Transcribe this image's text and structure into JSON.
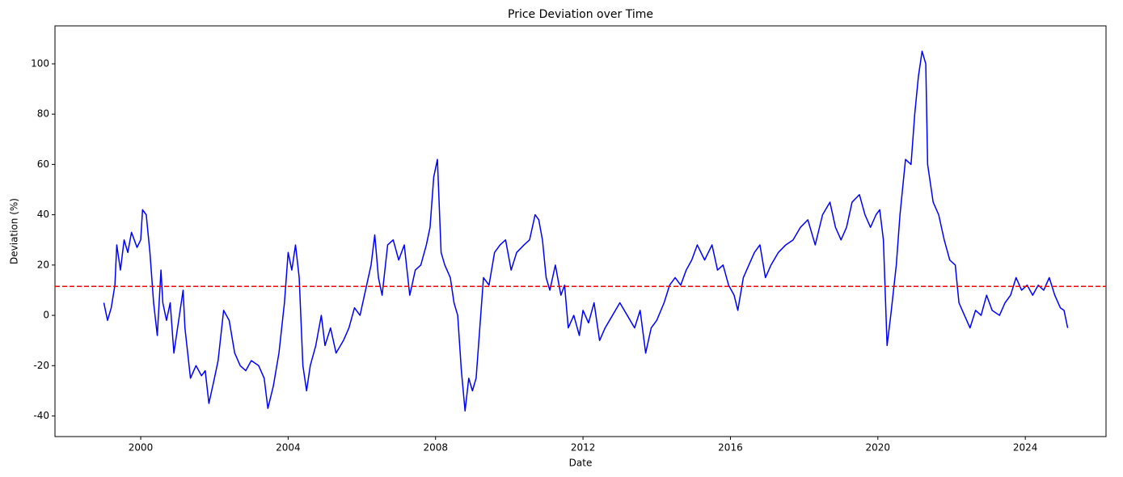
{
  "chart_data": {
    "type": "line",
    "title": "Price Deviation over Time",
    "x_label": "Date",
    "y_label": "Deviation (%)",
    "x": [
      1999.0,
      1999.1,
      1999.2,
      1999.3,
      1999.35,
      1999.45,
      1999.55,
      1999.65,
      1999.75,
      1999.9,
      2000.0,
      2000.05,
      2000.15,
      2000.25,
      2000.35,
      2000.45,
      2000.55,
      2000.6,
      2000.7,
      2000.8,
      2000.9,
      2001.0,
      2001.15,
      2001.2,
      2001.35,
      2001.5,
      2001.65,
      2001.75,
      2001.85,
      2002.0,
      2002.1,
      2002.25,
      2002.4,
      2002.55,
      2002.7,
      2002.85,
      2003.0,
      2003.2,
      2003.35,
      2003.45,
      2003.6,
      2003.75,
      2003.9,
      2004.0,
      2004.1,
      2004.2,
      2004.3,
      2004.4,
      2004.5,
      2004.6,
      2004.75,
      2004.9,
      2005.0,
      2005.15,
      2005.3,
      2005.5,
      2005.65,
      2005.8,
      2005.95,
      2006.1,
      2006.25,
      2006.35,
      2006.45,
      2006.55,
      2006.7,
      2006.85,
      2007.0,
      2007.15,
      2007.3,
      2007.45,
      2007.6,
      2007.75,
      2007.85,
      2007.95,
      2008.05,
      2008.15,
      2008.25,
      2008.4,
      2008.5,
      2008.6,
      2008.7,
      2008.8,
      2008.9,
      2009.0,
      2009.1,
      2009.2,
      2009.3,
      2009.45,
      2009.6,
      2009.75,
      2009.9,
      2010.05,
      2010.2,
      2010.4,
      2010.55,
      2010.7,
      2010.8,
      2010.9,
      2011.0,
      2011.1,
      2011.25,
      2011.4,
      2011.5,
      2011.6,
      2011.75,
      2011.9,
      2012.0,
      2012.15,
      2012.3,
      2012.45,
      2012.6,
      2012.8,
      2013.0,
      2013.2,
      2013.4,
      2013.55,
      2013.7,
      2013.85,
      2014.0,
      2014.2,
      2014.35,
      2014.5,
      2014.65,
      2014.8,
      2014.95,
      2015.1,
      2015.3,
      2015.5,
      2015.65,
      2015.8,
      2015.95,
      2016.1,
      2016.2,
      2016.35,
      2016.5,
      2016.65,
      2016.8,
      2016.95,
      2017.1,
      2017.3,
      2017.5,
      2017.7,
      2017.9,
      2018.1,
      2018.3,
      2018.5,
      2018.7,
      2018.85,
      2019.0,
      2019.15,
      2019.3,
      2019.5,
      2019.65,
      2019.8,
      2019.95,
      2020.05,
      2020.15,
      2020.25,
      2020.35,
      2020.5,
      2020.6,
      2020.75,
      2020.9,
      2021.0,
      2021.1,
      2021.2,
      2021.3,
      2021.35,
      2021.5,
      2021.65,
      2021.8,
      2021.95,
      2022.1,
      2022.2,
      2022.35,
      2022.5,
      2022.65,
      2022.8,
      2022.95,
      2023.1,
      2023.3,
      2023.45,
      2023.6,
      2023.75,
      2023.9,
      2024.05,
      2024.2,
      2024.35,
      2024.5,
      2024.65,
      2024.8,
      2024.95,
      2025.05,
      2025.15
    ],
    "series": [
      {
        "name": "Deviation",
        "color": "#0000ff",
        "values": [
          5,
          -2,
          3,
          12,
          28,
          18,
          30,
          25,
          33,
          27,
          30,
          42,
          40,
          25,
          5,
          -8,
          18,
          5,
          -2,
          5,
          -15,
          -5,
          10,
          -5,
          -25,
          -20,
          -24,
          -22,
          -35,
          -25,
          -18,
          2,
          -2,
          -15,
          -20,
          -22,
          -18,
          -20,
          -25,
          -37,
          -28,
          -15,
          5,
          25,
          18,
          28,
          15,
          -20,
          -30,
          -20,
          -12,
          0,
          -12,
          -5,
          -15,
          -10,
          -5,
          3,
          0,
          10,
          20,
          32,
          15,
          8,
          28,
          30,
          22,
          28,
          8,
          18,
          20,
          28,
          35,
          55,
          62,
          25,
          20,
          15,
          5,
          0,
          -22,
          -38,
          -25,
          -30,
          -25,
          -5,
          15,
          12,
          25,
          28,
          30,
          18,
          25,
          28,
          30,
          40,
          38,
          30,
          15,
          10,
          20,
          8,
          12,
          -5,
          0,
          -8,
          2,
          -3,
          5,
          -10,
          -5,
          0,
          5,
          0,
          -5,
          2,
          -15,
          -5,
          -2,
          5,
          12,
          15,
          12,
          18,
          22,
          28,
          22,
          28,
          18,
          20,
          12,
          8,
          2,
          15,
          20,
          25,
          28,
          15,
          20,
          25,
          28,
          30,
          35,
          38,
          28,
          40,
          45,
          35,
          30,
          35,
          45,
          48,
          40,
          35,
          40,
          42,
          30,
          -12,
          0,
          20,
          40,
          62,
          60,
          80,
          95,
          105,
          100,
          60,
          45,
          40,
          30,
          22,
          20,
          5,
          0,
          -5,
          2,
          0,
          8,
          2,
          0,
          5,
          8,
          15,
          10,
          12,
          8,
          12,
          10,
          15,
          8,
          3,
          2,
          -5
        ]
      }
    ],
    "reference_line": {
      "value": 11.5,
      "color": "#ff0000"
    },
    "xlim": [
      1997.674,
      2026.19
    ],
    "xticks": [
      2000,
      2004,
      2008,
      2012,
      2016,
      2020,
      2024
    ],
    "ylim": [
      -48.2,
      115.1
    ],
    "yticks": [
      -40,
      -20,
      0,
      20,
      40,
      60,
      80,
      100
    ]
  }
}
